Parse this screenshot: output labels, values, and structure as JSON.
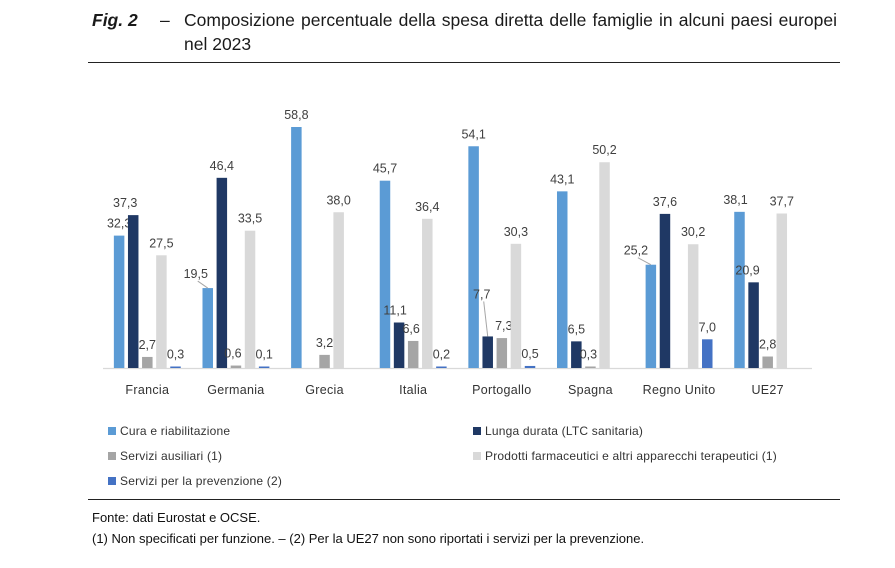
{
  "figure": {
    "label": "Fig. 2",
    "dash": "–",
    "title": "Composizione percentuale della spesa diretta delle famiglie in alcuni paesi europei nel 2023"
  },
  "chart_data": {
    "type": "bar",
    "title": "Composizione percentuale della spesa diretta delle famiglie in alcuni paesi europei nel 2023",
    "xlabel": "",
    "ylabel": "",
    "ylim": [
      0,
      60
    ],
    "grid": false,
    "legend_position": "bottom",
    "categories": [
      "Francia",
      "Germania",
      "Grecia",
      "Italia",
      "Portogallo",
      "Spagna",
      "Regno Unito",
      "UE27"
    ],
    "series": [
      {
        "name": "Cura e riabilitazione",
        "color": "#5b9bd5",
        "values": [
          32.3,
          19.5,
          58.8,
          45.7,
          54.1,
          43.1,
          25.2,
          38.1
        ],
        "labels": [
          "32,3",
          "19,5",
          "58,8",
          "45,7",
          "54,1",
          "43,1",
          "25,2",
          "38,1"
        ]
      },
      {
        "name": "Lunga durata (LTC sanitaria)",
        "color": "#1f3864",
        "values": [
          37.3,
          46.4,
          null,
          11.1,
          7.7,
          6.5,
          37.6,
          20.9
        ],
        "labels": [
          "37,3",
          "46,4",
          "",
          "11,1",
          "7,7",
          "6,5",
          "37,6",
          "20,9"
        ]
      },
      {
        "name": "Servizi ausiliari (1)",
        "color": "#a5a5a5",
        "values": [
          2.7,
          0.6,
          3.2,
          6.6,
          7.3,
          0.3,
          null,
          2.8
        ],
        "labels": [
          "2,7",
          "0,6",
          "3,2",
          "6,6",
          "7,3",
          "0,3",
          "",
          "2,8"
        ]
      },
      {
        "name": "Prodotti farmaceutici e altri apparecchi terapeutici (1)",
        "color": "#d9d9d9",
        "values": [
          27.5,
          33.5,
          38.0,
          36.4,
          30.3,
          50.2,
          30.2,
          37.7
        ],
        "labels": [
          "27,5",
          "33,5",
          "38,0",
          "36,4",
          "30,3",
          "50,2",
          "30,2",
          "37,7"
        ]
      },
      {
        "name": "Servizi per la prevenzione (2)",
        "color": "#4472c4",
        "values": [
          0.3,
          0.1,
          null,
          0.2,
          0.5,
          null,
          7.0,
          null
        ],
        "labels": [
          "0,3",
          "0,1",
          "",
          "0,2",
          "0,5",
          "",
          "7,0",
          ""
        ]
      }
    ]
  },
  "legend": [
    {
      "label": "Cura e riabilitazione",
      "color": "#5b9bd5"
    },
    {
      "label": "Lunga durata (LTC sanitaria)",
      "color": "#1f3864"
    },
    {
      "label": "Servizi ausiliari (1)",
      "color": "#a5a5a5"
    },
    {
      "label": "Prodotti farmaceutici e altri apparecchi terapeutici (1)",
      "color": "#d9d9d9"
    },
    {
      "label": "Servizi per la prevenzione (2)",
      "color": "#4472c4"
    }
  ],
  "footer": {
    "source": "Fonte: dati Eurostat e OCSE.",
    "notes": "(1) Non specificati per funzione. – (2) Per la UE27 non sono riportati i servizi per la prevenzione."
  }
}
